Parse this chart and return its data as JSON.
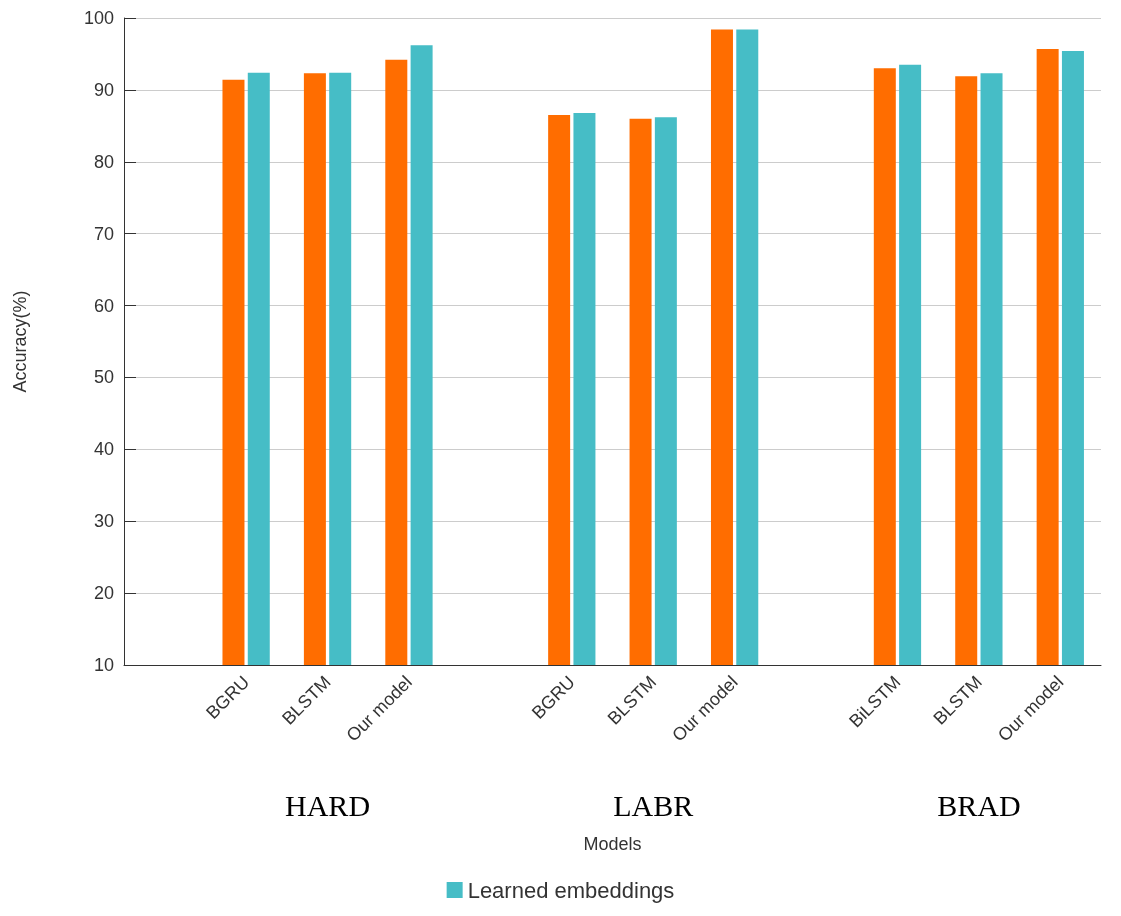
{
  "chart_data": {
    "type": "bar",
    "ylabel": "Accuracy(%)",
    "categories": [
      null,
      "BGRU",
      "BLSTM",
      "Our model",
      null,
      "BGRU",
      "BLSTM",
      "Our model",
      null,
      "BiLSTM",
      "BLSTM",
      "Our model"
    ],
    "series": [
      {
        "color": "#ff6d00",
        "values": [
          null,
          91.4,
          92.3,
          94.2,
          null,
          86.5,
          86.0,
          98.4,
          null,
          93.0,
          91.9,
          95.7
        ]
      },
      {
        "name": "Learned embeddings",
        "color": "#46bdc6",
        "values": [
          null,
          92.4,
          92.4,
          96.2,
          null,
          86.8,
          86.2,
          98.4,
          null,
          93.5,
          92.3,
          95.4
        ]
      }
    ],
    "annotations": [
      "HARD",
      "LABR",
      "BRAD",
      "Models"
    ],
    "ylim": [
      10,
      100
    ],
    "yticks": [
      10,
      20,
      30,
      40,
      50,
      60,
      70,
      80,
      90,
      100
    ],
    "grid": "y",
    "legend": "bottom"
  }
}
